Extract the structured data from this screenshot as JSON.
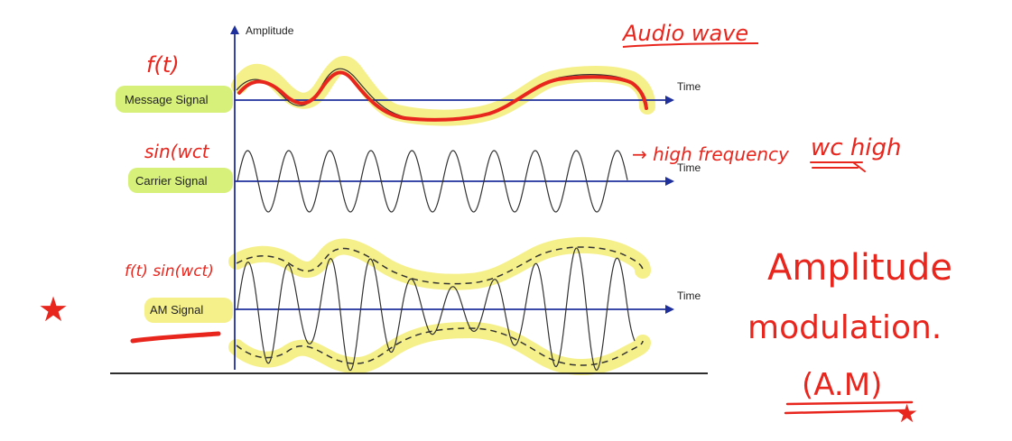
{
  "diagram": {
    "axis_label_y": "Amplitude",
    "axis_label_time": "Time",
    "rows": [
      {
        "label": "Message Signal",
        "note": "f(t)"
      },
      {
        "label": "Carrier Signal",
        "note": "sin(wct"
      },
      {
        "label": "AM Signal",
        "note": "f(t) sin(wct)"
      }
    ]
  },
  "annotations": {
    "audio_wave": "Audio wave",
    "high_frequency": "→ high frequency",
    "wc_high": "wc high",
    "title_line1": "Amplitude",
    "title_line2": "modulation.",
    "abbreviation": "(A.M)",
    "star_left": "★",
    "star_bottom": "★"
  },
  "colors": {
    "axis": "#1f2f9c",
    "ink": "#e8261e",
    "highlight_yellow": "#f6f08a",
    "highlight_green": "#d6f07a"
  }
}
